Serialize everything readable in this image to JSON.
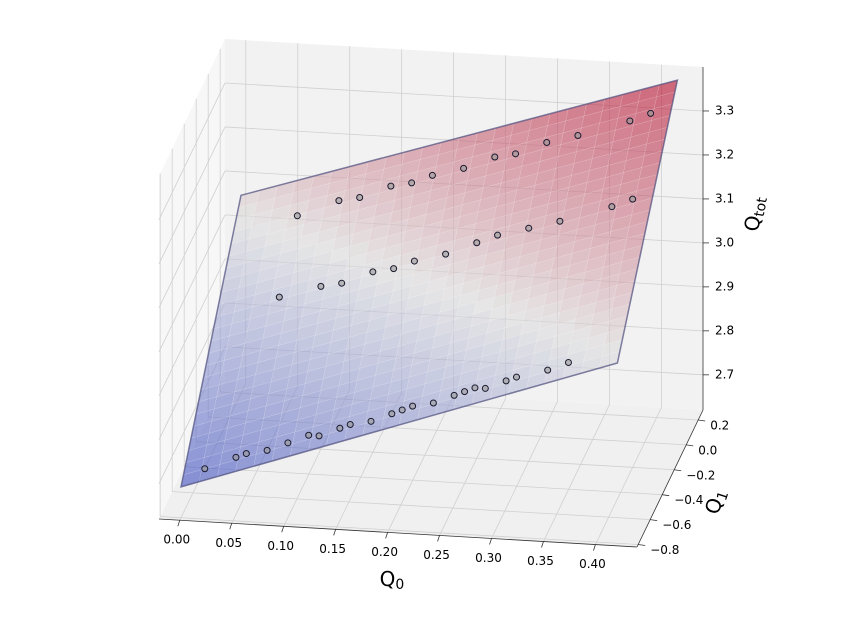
{
  "chart_data": {
    "type": "surface3d",
    "xlabel": {
      "base": "Q",
      "sub": "0"
    },
    "ylabel": {
      "base": "Q",
      "sub": "1"
    },
    "zlabel": {
      "base": "Q",
      "sub": "tot"
    },
    "xlim": [
      -0.02,
      0.44
    ],
    "ylim": [
      -0.82,
      0.28
    ],
    "zlim": [
      2.62,
      3.4
    ],
    "xticks": [
      {
        "value": 0,
        "label": "0.00"
      },
      {
        "value": 0.05,
        "label": "0.05"
      },
      {
        "value": 0.1,
        "label": "0.10"
      },
      {
        "value": 0.15,
        "label": "0.15"
      },
      {
        "value": 0.2,
        "label": "0.20"
      },
      {
        "value": 0.25,
        "label": "0.25"
      },
      {
        "value": 0.3,
        "label": "0.30"
      },
      {
        "value": 0.35,
        "label": "0.35"
      },
      {
        "value": 0.4,
        "label": "0.40"
      }
    ],
    "yticks": [
      {
        "value": -0.8,
        "label": "−0.8"
      },
      {
        "value": -0.6,
        "label": "−0.6"
      },
      {
        "value": -0.4,
        "label": "−0.4"
      },
      {
        "value": -0.2,
        "label": "−0.2"
      },
      {
        "value": 0,
        "label": "0.0"
      },
      0.2
    ],
    "zticks": [
      2.7,
      2.8,
      2.9,
      {
        "value": 3.0,
        "label": "3.0"
      },
      3.1,
      3.2,
      3.3
    ],
    "grid": true,
    "colormap": "coolwarm",
    "surface": {
      "x": [
        0,
        0.42
      ],
      "y": [
        -0.8,
        0.2
      ],
      "z": [
        [
          2.69,
          3.07
        ],
        [
          3.03,
          3.39
        ]
      ]
    },
    "scatter": {
      "color": "#9a9a9a",
      "edgecolor": "#1a1a2e",
      "x": [
        0.02,
        0.05,
        0.06,
        0.08,
        0.1,
        0.12,
        0.13,
        0.15,
        0.16,
        0.18,
        0.2,
        0.21,
        0.22,
        0.24,
        0.26,
        0.27,
        0.28,
        0.29,
        0.31,
        0.32,
        0.35,
        0.37,
        0.06,
        0.1,
        0.12,
        0.15,
        0.17,
        0.19,
        0.22,
        0.25,
        0.27,
        0.3,
        0.33,
        0.38,
        0.4,
        0.06,
        0.1,
        0.12,
        0.15,
        0.17,
        0.19,
        0.22,
        0.25,
        0.27,
        0.3,
        0.33,
        0.38,
        0.4
      ],
      "y": [
        -0.75,
        -0.75,
        -0.75,
        -0.75,
        -0.75,
        -0.75,
        -0.75,
        -0.75,
        -0.75,
        -0.75,
        -0.75,
        -0.75,
        -0.75,
        -0.75,
        -0.75,
        -0.75,
        -0.75,
        -0.75,
        -0.75,
        -0.75,
        -0.75,
        -0.75,
        -0.2,
        -0.2,
        -0.2,
        -0.2,
        -0.2,
        -0.2,
        -0.2,
        -0.2,
        -0.2,
        -0.2,
        -0.2,
        -0.2,
        -0.2,
        0.1,
        0.1,
        0.1,
        0.1,
        0.1,
        0.1,
        0.1,
        0.1,
        0.1,
        0.1,
        0.1,
        0.1,
        0.1
      ],
      "z": [
        2.72,
        2.75,
        2.76,
        2.77,
        2.79,
        2.81,
        2.81,
        2.83,
        2.84,
        2.85,
        2.87,
        2.88,
        2.89,
        2.9,
        2.92,
        2.93,
        2.94,
        2.94,
        2.96,
        2.97,
        2.99,
        3.01,
        2.96,
        2.99,
        3.0,
        3.03,
        3.04,
        3.06,
        3.08,
        3.11,
        3.13,
        3.15,
        3.17,
        3.21,
        3.23,
        3.06,
        3.1,
        3.11,
        3.14,
        3.15,
        3.17,
        3.19,
        3.22,
        3.23,
        3.26,
        3.28,
        3.32,
        3.34
      ]
    }
  }
}
